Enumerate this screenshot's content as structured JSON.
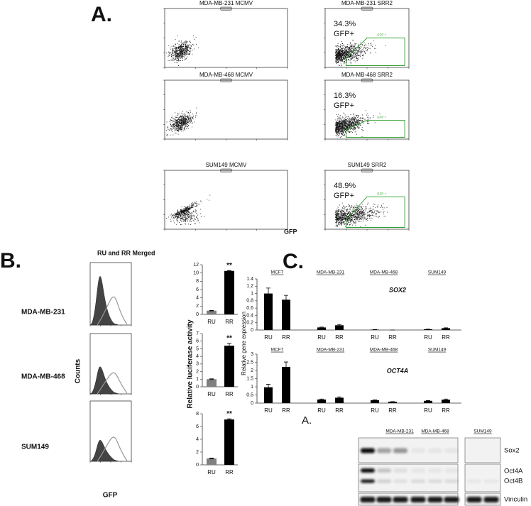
{
  "panel_a": {
    "label": "A.",
    "x_label": "GFP",
    "plots": [
      {
        "title": "MDA-MB-231 MCMV"
      },
      {
        "title": "MDA-MB-231 SRR2",
        "percent": "34.3%",
        "positive": "GFP+",
        "gate": "GFP +"
      },
      {
        "title": "MDA-MB-468 MCMV"
      },
      {
        "title": "MDA-MB-468 SRR2",
        "percent": "16.3%",
        "positive": "GFP+",
        "gate": "GFP +"
      },
      {
        "title": "SUM149 MCMV"
      },
      {
        "title": "SUM149 SRR2",
        "percent": "48.9%",
        "positive": "GFP+",
        "gate": "GFP +"
      }
    ]
  },
  "panel_b": {
    "label": "B.",
    "legend": "RU and RR Merged",
    "rows": [
      "MDA-MB-231",
      "MDA-MB-468",
      "SUM149"
    ],
    "y_label": "Counts",
    "x_label": "GFP",
    "bar_y_label": "Relative luciferase activity"
  },
  "panel_c": {
    "label": "C.",
    "y_label": "Relative gene expression",
    "blot": {
      "label": "A.",
      "groups": [
        "MDA-MB-231",
        "MDA-MB-468",
        "SUM149"
      ],
      "bands": [
        "Sox2",
        "Oct4A",
        "Oct4B",
        "Vinculin"
      ]
    }
  },
  "chart_data": [
    {
      "type": "bar",
      "categories": [
        "RU",
        "RR"
      ],
      "values": [
        0.9,
        10.5
      ],
      "errors": [
        0.05,
        0.1
      ],
      "colors": [
        "#808080",
        "#000000"
      ],
      "annotation": "**",
      "ylim": [
        0,
        12
      ],
      "yticks": [
        0,
        2,
        4,
        6,
        8,
        10,
        12
      ]
    },
    {
      "type": "bar",
      "categories": [
        "RU",
        "RR"
      ],
      "values": [
        1.0,
        5.4
      ],
      "errors": [
        0.05,
        0.3
      ],
      "colors": [
        "#808080",
        "#000000"
      ],
      "annotation": "**",
      "ylim": [
        0,
        7
      ],
      "yticks": [
        0,
        1,
        2,
        3,
        4,
        5,
        6,
        7
      ]
    },
    {
      "type": "bar",
      "categories": [
        "RU",
        "RR"
      ],
      "values": [
        1.0,
        7.1
      ],
      "errors": [
        0.05,
        0.1
      ],
      "colors": [
        "#808080",
        "#000000"
      ],
      "annotation": "**",
      "ylim": [
        0,
        8
      ],
      "yticks": [
        0,
        2,
        4,
        6,
        8
      ]
    },
    {
      "type": "bar",
      "title": "SOX2",
      "groups": [
        "MCF7",
        "MDA-MB-231",
        "MDA-MB-468",
        "SUM149"
      ],
      "categories": [
        "RU",
        "RR",
        "RU",
        "RR",
        "RU",
        "RR",
        "RU",
        "RR"
      ],
      "values": [
        1.0,
        0.83,
        0.07,
        0.13,
        0.01,
        0.0,
        0.02,
        0.05
      ],
      "errors": [
        0.15,
        0.12,
        0.01,
        0.02,
        0.003,
        0.0,
        0.005,
        0.01
      ],
      "color": "#000000",
      "ylim": [
        0,
        1.4
      ],
      "yticks": [
        0,
        0.2,
        0.4,
        0.6,
        0.8,
        1,
        1.2,
        1.4
      ]
    },
    {
      "type": "bar",
      "title": "OCT4A",
      "groups": [
        "MCF7",
        "MDA-MB-231",
        "MDA-MB-468",
        "SUM149"
      ],
      "categories": [
        "RU",
        "RR",
        "RU",
        "RR",
        "RU",
        "RR",
        "RU",
        "RR"
      ],
      "values": [
        0.97,
        2.22,
        0.22,
        0.33,
        0.18,
        0.08,
        0.14,
        0.21
      ],
      "errors": [
        0.18,
        0.3,
        0.03,
        0.05,
        0.02,
        0.01,
        0.02,
        0.04
      ],
      "color": "#000000",
      "ylim": [
        0,
        3
      ],
      "yticks": [
        0,
        0.5,
        1,
        1.5,
        2,
        2.5,
        3
      ]
    }
  ]
}
